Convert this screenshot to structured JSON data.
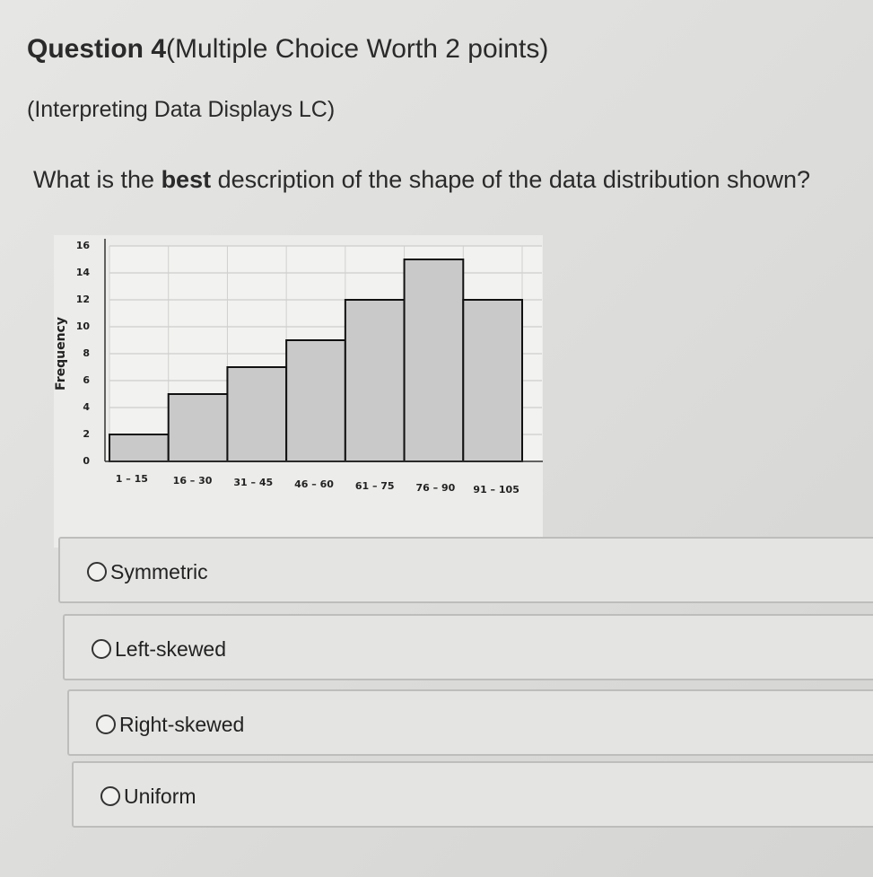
{
  "header": {
    "question_number": "Question 4",
    "worth": "(Multiple Choice Worth 2 points)",
    "topic": "(Interpreting Data Displays LC)"
  },
  "question": {
    "parts": [
      "What is the ",
      "best",
      " description of the shape of the data distribution shown?"
    ]
  },
  "chart_data": {
    "type": "bar",
    "y_label": "Frequency",
    "categories": [
      "1 – 15",
      "16 – 30",
      "31 – 45",
      "46 – 60",
      "61 – 75",
      "76 – 90",
      "91 – 105"
    ],
    "values": [
      2,
      5,
      7,
      9,
      12,
      15,
      12
    ],
    "color": "#c9c9c9",
    "ylim": [
      0,
      16
    ],
    "yticks": [
      0,
      2,
      4,
      6,
      8,
      10,
      12,
      14,
      16
    ],
    "grid": true
  },
  "options": [
    "Symmetric",
    "Left-skewed",
    "Right-skewed",
    "Uniform"
  ]
}
